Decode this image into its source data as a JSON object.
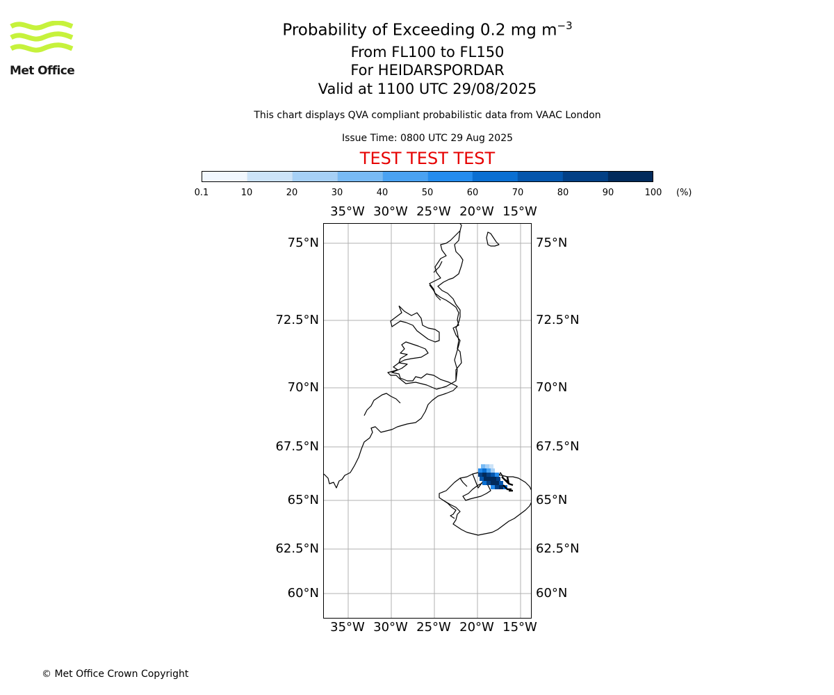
{
  "logo": {
    "text": "Met Office",
    "color": "#c6f23c"
  },
  "title": {
    "main": "Probability of Exceeding 0.2 mg m",
    "superscript": "−3",
    "levels": "From FL100 to FL150",
    "location": "For HEIDARSPORDAR",
    "valid": "Valid at 1100 UTC 29/08/2025"
  },
  "description": "This chart displays QVA compliant probabilistic data from VAAC London",
  "issue_time": "Issue Time: 0800 UTC 29 Aug 2025",
  "test_banner": {
    "text": "TEST TEST TEST",
    "color": "#e60000"
  },
  "colorbar": {
    "ticks": [
      "0.1",
      "10",
      "20",
      "30",
      "40",
      "50",
      "60",
      "70",
      "80",
      "90",
      "100"
    ],
    "unit": "(%)",
    "colors": [
      "#f1f7fe",
      "#cce3f8",
      "#a6d0f6",
      "#78baf4",
      "#4aa2f2",
      "#248cee",
      "#0a6fd2",
      "#0556ac",
      "#034085",
      "#022b5c"
    ]
  },
  "map": {
    "lon_labels": [
      "35°W",
      "30°W",
      "25°W",
      "20°W",
      "15°W"
    ],
    "lat_labels": [
      "75°N",
      "72.5°N",
      "70°N",
      "67.5°N",
      "65°N",
      "62.5°N",
      "60°N"
    ],
    "gridline_color": "#b0b0b0",
    "coast_color": "#000000"
  },
  "copyright": "© Met Office Crown Copyright"
}
